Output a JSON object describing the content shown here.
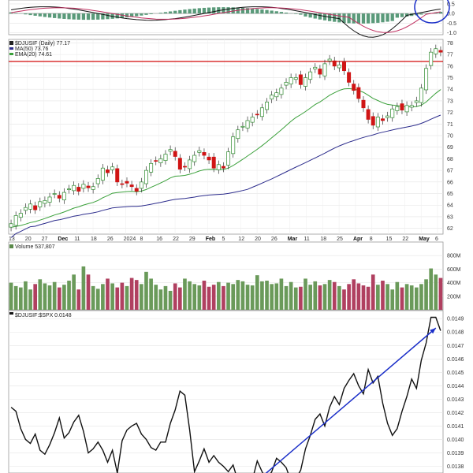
{
  "colors": {
    "price_up": "#2e8b2e",
    "price_down": "#d01414",
    "ma50": "#2c2c8c",
    "ema20": "#3aa03a",
    "resistance": "#d62020",
    "volume_up": "#6a9a5a",
    "volume_down": "#b04060",
    "ratio_line": "#111111",
    "trendline": "#1a2ec8",
    "macd_hist": "#5a9a7a",
    "circle": "#1a2ec8"
  },
  "chart_data": [
    {
      "panel": "macd",
      "type": "line",
      "y_tick_labels": [
        "0.5",
        "0.0",
        "-0.5",
        "-1.0"
      ],
      "ylim": [
        -1.1,
        0.7
      ],
      "grid": true
    },
    {
      "panel": "price",
      "type": "candlestick",
      "legend_lines": [
        "$DJUSIF (Daily) 77.17",
        "MA(50) 73.76",
        "EMA(20) 74.61"
      ],
      "y_tick_labels": [
        "78",
        "77",
        "76",
        "75",
        "74",
        "73",
        "72",
        "71",
        "70",
        "69",
        "68",
        "67",
        "66",
        "65",
        "64",
        "63",
        "62"
      ],
      "ylim": [
        61.5,
        78.3
      ],
      "resistance": 76.4,
      "closes": [
        62.4,
        63.1,
        63.3,
        63.8,
        64.1,
        63.6,
        64.3,
        64.4,
        64.7,
        65.0,
        64.6,
        65.1,
        65.4,
        65.7,
        65.2,
        65.8,
        65.5,
        65.6,
        66.3,
        67.2,
        66.8,
        67.3,
        66.0,
        65.8,
        65.9,
        65.6,
        65.2,
        66.0,
        67.0,
        67.6,
        67.8,
        68.0,
        68.4,
        68.8,
        68.2,
        67.1,
        67.3,
        67.9,
        68.3,
        68.7,
        68.3,
        67.9,
        67.2,
        67.5,
        67.2,
        68.6,
        69.9,
        70.5,
        70.8,
        71.3,
        71.6,
        71.8,
        72.4,
        72.9,
        73.5,
        73.7,
        74.1,
        74.6,
        75.0,
        75.0,
        74.4,
        75.0,
        75.5,
        75.9,
        75.3,
        76.2,
        76.6,
        76.0,
        76.1,
        75.6,
        74.6,
        73.9,
        73.2,
        72.4,
        71.4,
        70.9,
        71.6,
        71.3,
        71.7,
        72.3,
        72.5,
        72.2,
        72.6,
        72.6,
        73.0,
        74.1,
        75.8,
        77.2,
        77.5,
        77.2
      ],
      "x_tick_labels": [
        "13",
        "20",
        "27",
        "Dec",
        "11",
        "18",
        "26",
        "2024",
        "8",
        "16",
        "22",
        "29",
        "Feb",
        "5",
        "12",
        "20",
        "26",
        "Mar",
        "11",
        "18",
        "25",
        "Apr",
        "8",
        "15",
        "22",
        "May",
        "6"
      ],
      "grid": true
    },
    {
      "panel": "volume",
      "type": "bar",
      "legend_lines": [
        "Volume 537,807"
      ],
      "y_tick_labels": [
        "800M",
        "600M",
        "400M",
        "200M"
      ],
      "ylim": [
        0,
        1000
      ],
      "values": [
        400,
        350,
        330,
        420,
        300,
        380,
        450,
        390,
        360,
        410,
        330,
        370,
        430,
        520,
        300,
        640,
        520,
        350,
        310,
        380,
        460,
        390,
        330,
        400,
        350,
        470,
        440,
        380,
        560,
        460,
        370,
        300,
        350,
        280,
        390,
        330,
        460,
        420,
        380,
        360,
        430,
        340,
        370,
        410,
        350,
        400,
        380,
        440,
        420,
        370,
        360,
        510,
        420,
        430,
        380,
        390,
        460,
        350,
        410,
        330,
        340,
        460,
        370,
        420,
        360,
        380,
        440,
        410,
        350,
        300,
        380,
        450,
        390,
        360,
        340,
        520,
        370,
        430,
        380,
        300,
        410,
        330,
        380,
        360,
        330,
        380,
        450,
        610,
        520,
        470
      ]
    },
    {
      "panel": "ratio",
      "type": "line",
      "legend_lines": [
        "$DJUSIF:$SPX 0.0148"
      ],
      "y_tick_labels": [
        "0.0149",
        "0.0148",
        "0.0147",
        "0.0146",
        "0.0145",
        "0.0144",
        "0.0143",
        "0.0142",
        "0.0141",
        "0.0140",
        "0.0139",
        "0.0138"
      ],
      "ylim": [
        0.01375,
        0.01496
      ],
      "values": [
        0.01424,
        0.01421,
        0.01408,
        0.014,
        0.01397,
        0.01404,
        0.01392,
        0.01389,
        0.01396,
        0.01405,
        0.01416,
        0.01401,
        0.01405,
        0.01413,
        0.01418,
        0.01406,
        0.0139,
        0.01393,
        0.01398,
        0.01392,
        0.01383,
        0.01392,
        0.01375,
        0.01399,
        0.01407,
        0.0141,
        0.01412,
        0.01404,
        0.014,
        0.01394,
        0.01392,
        0.01398,
        0.01398,
        0.01412,
        0.01422,
        0.01436,
        0.01433,
        0.01407,
        0.01376,
        0.01384,
        0.01393,
        0.01383,
        0.01388,
        0.01383,
        0.0138,
        0.01376,
        0.01381,
        0.01369,
        0.01367,
        0.01371,
        0.0137,
        0.01384,
        0.01376,
        0.0137,
        0.01376,
        0.01386,
        0.01383,
        0.01379,
        0.01369,
        0.01371,
        0.01377,
        0.01393,
        0.01403,
        0.01415,
        0.01419,
        0.0141,
        0.01424,
        0.01432,
        0.01426,
        0.01438,
        0.01444,
        0.01449,
        0.0144,
        0.01434,
        0.01452,
        0.01442,
        0.01447,
        0.01427,
        0.01412,
        0.01403,
        0.01408,
        0.01421,
        0.01432,
        0.01445,
        0.01438,
        0.01459,
        0.01472,
        0.01491,
        0.01491,
        0.01481
      ],
      "trendline": [
        [
          48,
          0.0136
        ],
        [
          88,
          0.01483
        ]
      ],
      "grid": true
    }
  ]
}
